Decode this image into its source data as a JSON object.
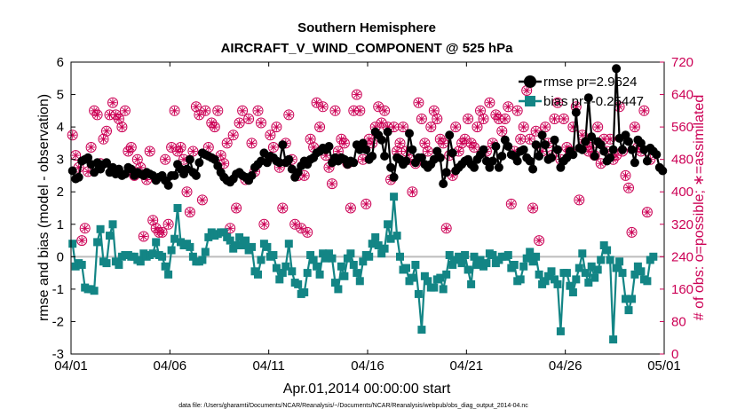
{
  "chart_data": {
    "type": "line",
    "title": "Southern Hemisphere",
    "subtitle": "AIRCRAFT_V_WIND_COMPONENT @ 525 hPa",
    "xlabel": "Apr.01,2014 00:00:00 start",
    "ylabel": "rmse and bias (model - observation)",
    "y2label": "# of obs: o=possible; ∗=assimilated",
    "footnote": "data file: /Users/gharamti/Documents/NCAR/Reanalysis/~/Documents/NCAR/Reanalysis/webpub/obs_diag_output_2014-04.nc",
    "xlim": [
      0,
      30
    ],
    "ylim": [
      -3,
      6
    ],
    "y2lim": [
      0,
      720
    ],
    "x_ticks": [
      0,
      5,
      10,
      15,
      20,
      25,
      30
    ],
    "x_tick_labels": [
      "04/01",
      "04/06",
      "04/11",
      "04/16",
      "04/21",
      "04/26",
      "05/01"
    ],
    "y_ticks": [
      "-3",
      "-2",
      "-1",
      "0",
      "1",
      "2",
      "3",
      "4",
      "5",
      "6"
    ],
    "y2_ticks": [
      "0",
      "80",
      "160",
      "240",
      "320",
      "400",
      "480",
      "560",
      "640",
      "720"
    ],
    "legend_position": "top-right",
    "colors": {
      "rmse": "#000000",
      "bias": "#138585",
      "obs": "#cc0055",
      "zero_line": "#bdbdbd"
    },
    "series": [
      {
        "name": "rmse pr=2.9624",
        "marker": "circle",
        "values": [
          2.65,
          2.4,
          2.45,
          2.95,
          3.0,
          3.05,
          2.85,
          2.6,
          2.9,
          2.7,
          2.85,
          2.9,
          2.6,
          2.75,
          2.55,
          2.7,
          2.5,
          2.55,
          2.75,
          2.7,
          2.5,
          2.6,
          2.55,
          2.5,
          2.6,
          2.55,
          2.5,
          2.35,
          2.45,
          2.5,
          2.35,
          2.2,
          2.5,
          2.5,
          2.85,
          2.7,
          2.55,
          2.7,
          3.0,
          2.6,
          2.5,
          2.9,
          3.2,
          3.15,
          3.1,
          3.05,
          3.0,
          2.8,
          2.6,
          2.45,
          2.35,
          2.3,
          2.4,
          2.55,
          2.6,
          2.5,
          2.45,
          2.35,
          2.5,
          2.75,
          2.85,
          2.95,
          3.2,
          2.9,
          3.1,
          3.05,
          2.95,
          2.9,
          3.45,
          2.9,
          3.0,
          2.7,
          2.45,
          2.6,
          2.8,
          2.95,
          2.85,
          3.0,
          3.05,
          3.2,
          3.25,
          3.35,
          3.3,
          3.4,
          2.9,
          3.05,
          2.95,
          3.05,
          3.0,
          2.85,
          2.95,
          2.9,
          3.45,
          3.3,
          3.5,
          3.3,
          3.0,
          3.1,
          3.85,
          3.75,
          3.6,
          3.1,
          3.85,
          2.75,
          2.45,
          3.05,
          3.0,
          2.85,
          2.95,
          3.8,
          3.3,
          2.9,
          3.05,
          3.05,
          2.85,
          2.75,
          2.85,
          3.0,
          3.25,
          3.05,
          2.25,
          2.6,
          3.75,
          3.2,
          2.65,
          2.75,
          2.85,
          2.95,
          3.0,
          2.85,
          2.75,
          3.0,
          3.15,
          3.3,
          2.95,
          2.75,
          2.95,
          3.4,
          2.75,
          3.1,
          3.6,
          3.4,
          3.15,
          3.1,
          2.95,
          3.25,
          3.3,
          3.05,
          2.95,
          2.7,
          3.45,
          3.1,
          3.75,
          3.45,
          3.0,
          3.05,
          3.6,
          3.3,
          2.75,
          2.95,
          3.05,
          3.25,
          3.15,
          4.45,
          3.35,
          3.3,
          3.55,
          4.9,
          3.7,
          3.1,
          3.55,
          3.45,
          3.25,
          2.95,
          3.05,
          3.3,
          5.8,
          3.65,
          3.3,
          3.75,
          3.55,
          3.3,
          2.9,
          3.6,
          3.5,
          3.3,
          2.95,
          3.35,
          3.25,
          3.15,
          2.75,
          2.65
        ]
      },
      {
        "name": "bias pr=-0.25447",
        "marker": "square",
        "values": [
          0.4,
          -0.3,
          -0.2,
          -0.25,
          -0.95,
          -1.0,
          -1.0,
          -1.05,
          0.45,
          0.85,
          -0.15,
          -0.2,
          0.65,
          1.0,
          -0.15,
          -0.25,
          0.0,
          0.05,
          0.05,
          0.0,
          0.0,
          -0.1,
          -0.15,
          0.1,
          0.0,
          0.05,
          0.1,
          0.45,
          0.05,
          0.0,
          -0.3,
          -0.55,
          0.2,
          0.55,
          1.5,
          0.45,
          0.35,
          0.4,
          0.3,
          0.0,
          -0.15,
          -0.15,
          -0.1,
          0.15,
          0.6,
          0.75,
          0.65,
          0.7,
          0.75,
          0.75,
          0.6,
          0.5,
          0.25,
          0.35,
          0.6,
          0.35,
          0.5,
          0.2,
          0.3,
          -0.45,
          -0.55,
          -0.1,
          0.4,
          0.3,
          0.0,
          0.05,
          -0.35,
          -0.7,
          -0.5,
          -0.3,
          0.4,
          -0.45,
          -0.8,
          -0.85,
          -1.15,
          -1.1,
          -0.5,
          0.05,
          -0.1,
          -0.3,
          -0.55,
          0.1,
          -0.05,
          0.1,
          -0.05,
          -0.8,
          -1.0,
          -0.3,
          -0.6,
          -0.05,
          0.1,
          -0.25,
          -0.5,
          -0.75,
          -0.15,
          0.05,
          0.0,
          0.4,
          0.6,
          0.35,
          0.1,
          0.25,
          1.0,
          0.55,
          1.85,
          0.65,
          0.0,
          -0.4,
          -0.35,
          -0.75,
          -0.65,
          -0.25,
          -1.15,
          -2.25,
          -0.6,
          -0.75,
          -0.95,
          -0.95,
          -0.7,
          -0.65,
          -1.0,
          -0.55,
          0.05,
          -0.25,
          -0.1,
          0.0,
          -0.2,
          0.05,
          -0.4,
          -0.85,
          0.0,
          -0.25,
          -0.1,
          -0.3,
          -0.2,
          0.1,
          0.05,
          -0.2,
          -0.1,
          0.0,
          0.0,
          0.05,
          -0.35,
          -0.25,
          -0.75,
          -0.7,
          -0.3,
          -0.05,
          0.15,
          -0.15,
          0.0,
          -0.55,
          -0.85,
          -0.75,
          -0.6,
          -0.45,
          -0.7,
          -0.85,
          -2.3,
          -0.5,
          -0.5,
          -0.9,
          -1.1,
          -0.7,
          -0.35,
          0.1,
          -0.5,
          -0.8,
          -0.3,
          -0.65,
          -0.4,
          -0.1,
          0.35,
          0.2,
          -0.1,
          -2.55,
          -0.35,
          -0.15,
          -0.5,
          -1.3,
          -1.65,
          -1.3,
          -0.55,
          -0.3,
          -0.45,
          -0.7,
          -0.75,
          -0.1,
          0.0
        ]
      },
      {
        "name": "possible obs",
        "marker": "circle-open",
        "values": [
          540,
          490,
          460,
          280,
          310,
          450,
          510,
          600,
          590,
          470,
          530,
          550,
          590,
          620,
          590,
          580,
          560,
          600,
          500,
          510,
          440,
          480,
          460,
          290,
          430,
          500,
          330,
          310,
          300,
          300,
          480,
          320,
          510,
          600,
          500,
          510,
          480,
          400,
          350,
          500,
          610,
          590,
          380,
          600,
          510,
          570,
          560,
          600,
          490,
          470,
          520,
          310,
          540,
          360,
          570,
          600,
          430,
          580,
          520,
          450,
          600,
          570,
          320,
          480,
          540,
          510,
          560,
          460,
          360,
          520,
          590,
          480,
          320,
          440,
          310,
          440,
          300,
          530,
          510,
          620,
          560,
          610,
          490,
          460,
          420,
          600,
          500,
          530,
          520,
          470,
          360,
          600,
          640,
          600,
          480,
          370,
          530,
          520,
          560,
          610,
          570,
          600,
          560,
          430,
          560,
          500,
          520,
          560,
          500,
          480,
          400,
          470,
          620,
          580,
          520,
          500,
          560,
          600,
          580,
          530,
          520,
          310,
          490,
          440,
          560,
          500,
          520,
          530,
          580,
          520,
          510,
          560,
          600,
          580,
          500,
          620,
          520,
          590,
          580,
          550,
          580,
          610,
          370,
          500,
          600,
          530,
          560,
          650,
          530,
          360,
          550,
          280,
          500,
          560,
          520,
          490,
          580,
          620,
          480,
          580,
          510,
          500,
          560,
          610,
          380,
          540,
          520,
          500,
          510,
          490,
          560,
          470,
          530,
          500,
          530,
          480,
          490,
          610,
          500,
          440,
          410,
          300,
          560,
          510,
          500,
          600,
          350,
          480
        ]
      },
      {
        "name": "assimilated obs",
        "marker": "asterisk",
        "values": [
          540,
          490,
          460,
          280,
          310,
          450,
          510,
          600,
          590,
          470,
          530,
          550,
          590,
          620,
          590,
          580,
          560,
          600,
          500,
          510,
          440,
          480,
          460,
          290,
          430,
          500,
          330,
          310,
          300,
          300,
          480,
          320,
          510,
          600,
          500,
          510,
          480,
          400,
          350,
          500,
          610,
          590,
          380,
          600,
          510,
          570,
          560,
          600,
          490,
          470,
          520,
          310,
          540,
          360,
          570,
          600,
          430,
          580,
          520,
          450,
          600,
          570,
          320,
          480,
          540,
          510,
          560,
          460,
          360,
          520,
          590,
          480,
          320,
          440,
          310,
          440,
          300,
          530,
          510,
          620,
          560,
          610,
          490,
          460,
          420,
          600,
          500,
          530,
          520,
          470,
          360,
          600,
          640,
          600,
          480,
          370,
          530,
          520,
          560,
          610,
          570,
          600,
          560,
          430,
          560,
          500,
          520,
          560,
          500,
          480,
          400,
          470,
          620,
          580,
          520,
          500,
          560,
          600,
          580,
          530,
          520,
          310,
          490,
          440,
          560,
          500,
          520,
          530,
          580,
          520,
          510,
          560,
          600,
          580,
          500,
          620,
          520,
          590,
          580,
          550,
          580,
          610,
          370,
          500,
          600,
          530,
          560,
          650,
          530,
          360,
          550,
          280,
          500,
          560,
          520,
          490,
          580,
          620,
          480,
          580,
          510,
          500,
          560,
          610,
          380,
          540,
          520,
          500,
          510,
          490,
          560,
          470,
          530,
          500,
          530,
          480,
          490,
          610,
          500,
          440,
          410,
          300,
          560,
          510,
          500,
          600,
          350,
          480
        ]
      }
    ]
  }
}
